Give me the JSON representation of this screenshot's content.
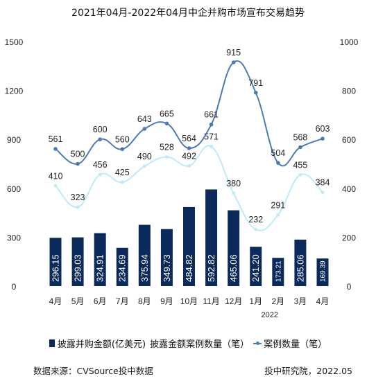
{
  "title": "2021年04月-2022年04月中企并购市场宣布交易趋势",
  "source": "数据来源：CVSource投中数据",
  "credit": "投中研究院，2022.05",
  "colors": {
    "bar": "#0b2a5b",
    "deal_count_line": "#4a7bb8",
    "disclosed_count_line": "#bfeaf8",
    "axis_text": "#222222"
  },
  "chart_data": {
    "type": "bar",
    "categories": [
      "4月",
      "5月",
      "6月",
      "7月",
      "8月",
      "9月",
      "10月",
      "11月",
      "12月",
      "1月",
      "2月",
      "3月",
      "4月"
    ],
    "year_label": "2022",
    "y_left_ticks": [
      "0",
      "300",
      "600",
      "900",
      "1200",
      "1500"
    ],
    "y_right_ticks": [
      "0",
      "200",
      "400",
      "600",
      "800",
      "1000"
    ],
    "ylim_left": [
      0,
      1500
    ],
    "ylim_right": [
      0,
      1000
    ],
    "series": [
      {
        "name": "披露并购金额(亿美元)",
        "type": "bar",
        "axis": "left",
        "values": [
          296.15,
          299.03,
          324.91,
          234.69,
          375.94,
          349.73,
          484.82,
          592.82,
          465.06,
          241.2,
          173.21,
          285.06,
          169.39
        ],
        "labels": [
          "296.15",
          "299.03",
          "324.91",
          "234.69",
          "375.94",
          "349.73",
          "484.82",
          "592.82",
          "465.06",
          "241.20",
          "173.21",
          "285.06",
          "169.39"
        ]
      },
      {
        "name": "披露金额案例数量（笔）",
        "type": "line",
        "axis": "right",
        "values": [
          410,
          323,
          456,
          425,
          490,
          528,
          492,
          571,
          380,
          232,
          291,
          455,
          384
        ],
        "labels": [
          "410",
          "323",
          "456",
          "425",
          "490",
          "528",
          "492",
          "571",
          "380",
          "232",
          "291",
          "455",
          "384"
        ]
      },
      {
        "name": "案例数量（笔）",
        "type": "line",
        "axis": "right",
        "values": [
          561,
          500,
          600,
          560,
          643,
          665,
          564,
          661,
          915,
          791,
          504,
          568,
          603
        ],
        "labels": [
          "561",
          "500",
          "600",
          "560",
          "643",
          "665",
          "564",
          "661",
          "915",
          "791",
          "504",
          "568",
          "603"
        ]
      }
    ],
    "legend_position": "bottom",
    "grid": false
  }
}
